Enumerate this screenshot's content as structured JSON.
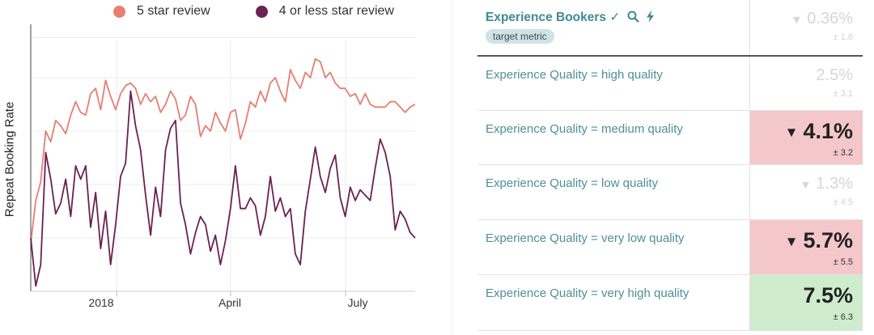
{
  "chart_data": {
    "type": "line",
    "ylabel": "Repeat Booking Rate",
    "xlabel": "",
    "x_tick_labels": [
      "2018",
      "April",
      "July"
    ],
    "x_ticks": [
      "2018-01-01",
      "2018-04-01",
      "2018-07-01"
    ],
    "x_range": [
      "2017-10-25",
      "2018-08-25"
    ],
    "y_range": [
      0,
      100
    ],
    "grid": true,
    "legend_position": "top",
    "series": [
      {
        "name": "5 star review",
        "color": "#e57f72",
        "values": [
          18,
          34,
          41,
          60,
          56,
          64,
          62,
          59,
          66,
          71,
          67,
          66,
          74,
          76,
          68,
          79,
          73,
          68,
          74,
          77,
          78,
          76,
          70,
          74,
          71,
          73,
          67,
          70,
          75,
          72,
          64,
          66,
          73,
          70,
          58,
          62,
          60,
          67,
          63,
          60,
          67,
          68,
          57,
          63,
          71,
          69,
          75,
          71,
          78,
          80,
          75,
          71,
          83,
          79,
          76,
          82,
          80,
          87,
          86,
          80,
          82,
          78,
          76,
          76,
          73,
          74,
          70,
          74,
          70,
          69,
          69,
          69,
          71,
          71,
          69,
          67,
          69,
          70
        ]
      },
      {
        "name": "4 or less star review",
        "color": "#6b2154",
        "values": [
          20,
          2,
          10,
          52,
          42,
          29,
          33,
          42,
          28,
          47,
          42,
          47,
          24,
          37,
          16,
          30,
          10,
          25,
          43,
          48,
          75,
          62,
          53,
          36,
          21,
          39,
          28,
          53,
          61,
          64,
          33,
          25,
          14,
          22,
          28,
          25,
          15,
          21,
          10,
          19,
          31,
          47,
          31,
          31,
          35,
          32,
          21,
          28,
          43,
          30,
          35,
          28,
          31,
          14,
          10,
          30,
          42,
          54,
          43,
          37,
          46,
          51,
          35,
          28,
          39,
          34,
          38,
          36,
          34,
          46,
          57,
          52,
          43,
          23,
          30,
          27,
          22,
          20
        ]
      }
    ]
  },
  "table": {
    "header": {
      "label": "Experience Bookers ✓",
      "tag": "target metric",
      "value": "0.36%",
      "error": "± 1.8"
    },
    "rows": [
      {
        "label": "Experience Quality = high quality",
        "value": "2.5%",
        "error": "± 3.1",
        "direction": "",
        "highlight": ""
      },
      {
        "label": "Experience Quality = medium quality",
        "value": "4.1%",
        "error": "± 3.2",
        "direction": "down",
        "highlight": "#f4c7cb"
      },
      {
        "label": "Experience Quality = low quality",
        "value": "1.3%",
        "error": "± 4.5",
        "direction": "down",
        "highlight": ""
      },
      {
        "label": "Experience Quality = very low quality",
        "value": "5.7%",
        "error": "± 5.5",
        "direction": "down",
        "highlight": "#f4c7cb"
      },
      {
        "label": "Experience Quality = very high quality",
        "value": "7.5%",
        "error": "± 6.3",
        "direction": "",
        "highlight": "#cfeccd"
      }
    ]
  }
}
